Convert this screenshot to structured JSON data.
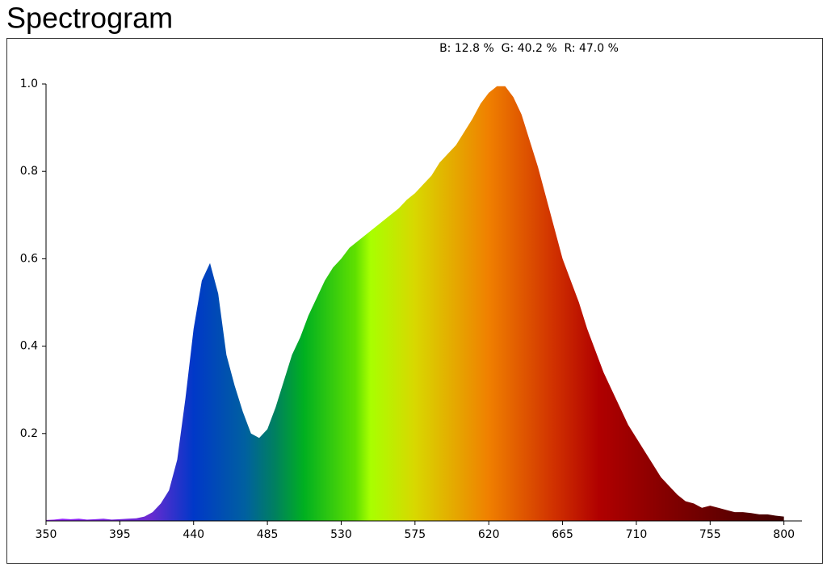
{
  "chart_data": {
    "type": "area",
    "title": "Spectrogram",
    "annotation": "B: 12.8 %  G: 40.2 %  R: 47.0 %",
    "x": [
      350,
      355,
      360,
      365,
      370,
      375,
      380,
      385,
      390,
      395,
      400,
      405,
      410,
      415,
      420,
      425,
      430,
      435,
      440,
      445,
      450,
      455,
      460,
      465,
      470,
      475,
      480,
      485,
      490,
      495,
      500,
      505,
      510,
      515,
      520,
      525,
      530,
      535,
      540,
      545,
      550,
      555,
      560,
      565,
      570,
      575,
      580,
      585,
      590,
      595,
      600,
      605,
      610,
      615,
      620,
      625,
      630,
      635,
      640,
      645,
      650,
      655,
      660,
      665,
      670,
      675,
      680,
      685,
      690,
      695,
      700,
      705,
      710,
      715,
      720,
      725,
      730,
      735,
      740,
      745,
      750,
      755,
      760,
      765,
      770,
      775,
      780,
      785,
      790,
      795,
      800
    ],
    "values": [
      0.002,
      0.003,
      0.005,
      0.004,
      0.005,
      0.003,
      0.004,
      0.005,
      0.003,
      0.004,
      0.005,
      0.006,
      0.01,
      0.02,
      0.04,
      0.07,
      0.14,
      0.28,
      0.44,
      0.55,
      0.59,
      0.52,
      0.38,
      0.31,
      0.25,
      0.2,
      0.19,
      0.21,
      0.26,
      0.32,
      0.38,
      0.42,
      0.47,
      0.51,
      0.55,
      0.58,
      0.6,
      0.625,
      0.64,
      0.655,
      0.67,
      0.685,
      0.7,
      0.715,
      0.735,
      0.75,
      0.77,
      0.79,
      0.82,
      0.84,
      0.86,
      0.89,
      0.92,
      0.955,
      0.98,
      0.995,
      0.995,
      0.97,
      0.93,
      0.87,
      0.81,
      0.74,
      0.67,
      0.6,
      0.55,
      0.5,
      0.44,
      0.39,
      0.34,
      0.3,
      0.26,
      0.22,
      0.19,
      0.16,
      0.13,
      0.1,
      0.08,
      0.06,
      0.045,
      0.04,
      0.03,
      0.035,
      0.03,
      0.025,
      0.02,
      0.02,
      0.018,
      0.015,
      0.015,
      0.012,
      0.01
    ],
    "xlim": [
      350,
      811
    ],
    "xticks": [
      350,
      395,
      440,
      485,
      530,
      575,
      620,
      665,
      710,
      755,
      800
    ],
    "ylim": [
      0,
      1
    ],
    "yticks": [
      0.2,
      0.4,
      0.6,
      0.8,
      {
        "value": 1,
        "label": "1.0"
      }
    ]
  }
}
